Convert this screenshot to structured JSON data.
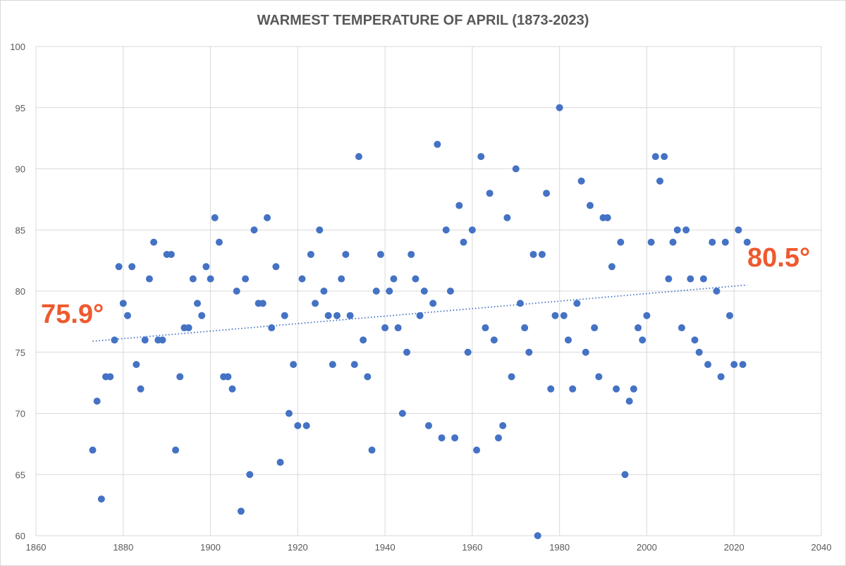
{
  "chart_data": {
    "type": "scatter",
    "title": "WARMEST TEMPERATURE OF APRIL (1873-2023)",
    "xlabel": "",
    "ylabel": "",
    "xlim": [
      1860,
      2040
    ],
    "ylim": [
      60,
      100
    ],
    "x_ticks": [
      1860,
      1880,
      1900,
      1920,
      1940,
      1960,
      1980,
      2000,
      2020,
      2040
    ],
    "y_ticks": [
      60,
      65,
      70,
      75,
      80,
      85,
      90,
      95,
      100
    ],
    "grid": true,
    "legend": "none",
    "x": [
      1873,
      1874,
      1875,
      1876,
      1877,
      1878,
      1879,
      1880,
      1881,
      1882,
      1883,
      1884,
      1885,
      1886,
      1887,
      1888,
      1889,
      1890,
      1891,
      1892,
      1893,
      1894,
      1895,
      1896,
      1897,
      1898,
      1899,
      1900,
      1901,
      1902,
      1903,
      1904,
      1905,
      1906,
      1907,
      1908,
      1909,
      1910,
      1911,
      1912,
      1913,
      1914,
      1915,
      1916,
      1917,
      1918,
      1919,
      1920,
      1921,
      1922,
      1923,
      1924,
      1925,
      1926,
      1927,
      1928,
      1929,
      1930,
      1931,
      1932,
      1933,
      1934,
      1935,
      1936,
      1937,
      1938,
      1939,
      1940,
      1941,
      1942,
      1943,
      1944,
      1945,
      1946,
      1947,
      1948,
      1949,
      1950,
      1951,
      1952,
      1953,
      1954,
      1955,
      1956,
      1957,
      1958,
      1959,
      1960,
      1961,
      1962,
      1963,
      1964,
      1965,
      1966,
      1967,
      1968,
      1969,
      1970,
      1971,
      1972,
      1973,
      1974,
      1975,
      1976,
      1977,
      1978,
      1979,
      1980,
      1981,
      1982,
      1983,
      1984,
      1985,
      1986,
      1987,
      1988,
      1989,
      1990,
      1991,
      1992,
      1993,
      1994,
      1995,
      1996,
      1997,
      1998,
      1999,
      2000,
      2001,
      2002,
      2003,
      2004,
      2005,
      2006,
      2007,
      2008,
      2009,
      2010,
      2011,
      2012,
      2013,
      2014,
      2015,
      2016,
      2017,
      2018,
      2019,
      2020,
      2021,
      2022,
      2023
    ],
    "y": [
      67,
      71,
      63,
      73,
      73,
      76,
      82,
      79,
      78,
      82,
      74,
      72,
      76,
      81,
      84,
      76,
      76,
      83,
      83,
      67,
      73,
      77,
      77,
      81,
      79,
      78,
      82,
      81,
      86,
      84,
      73,
      73,
      72,
      80,
      62,
      81,
      65,
      85,
      79,
      79,
      86,
      77,
      82,
      66,
      78,
      70,
      74,
      69,
      81,
      69,
      83,
      79,
      85,
      80,
      78,
      74,
      78,
      81,
      83,
      78,
      74,
      91,
      76,
      73,
      67,
      80,
      83,
      77,
      80,
      81,
      77,
      70,
      75,
      83,
      81,
      78,
      80,
      69,
      79,
      92,
      68,
      85,
      80,
      68,
      87,
      84,
      75,
      85,
      67,
      91,
      77,
      88,
      76,
      68,
      69,
      86,
      73,
      90,
      79,
      77,
      75,
      83,
      60,
      83,
      88,
      72,
      78,
      95,
      78,
      76,
      72,
      79,
      89,
      75,
      87,
      77,
      73,
      86,
      86,
      82,
      72,
      84,
      65,
      71,
      72,
      77,
      76,
      78,
      84,
      91,
      89,
      91,
      81,
      84,
      85,
      77,
      85,
      81,
      76,
      75,
      81,
      74,
      84,
      80,
      73,
      84,
      78,
      74,
      85,
      74,
      84
    ],
    "point_color": "#4472C4",
    "trendline": {
      "type": "linear",
      "start": [
        1873,
        75.9
      ],
      "end": [
        2023,
        80.5
      ],
      "color": "#4472C4",
      "style": "dotted"
    },
    "annotations": [
      {
        "text": "75.9°",
        "x": 1873,
        "y": 75.9,
        "color": "#EE5A2E"
      },
      {
        "text": "80.5°",
        "x": 2023,
        "y": 80.5,
        "color": "#EE5A2E"
      }
    ]
  }
}
